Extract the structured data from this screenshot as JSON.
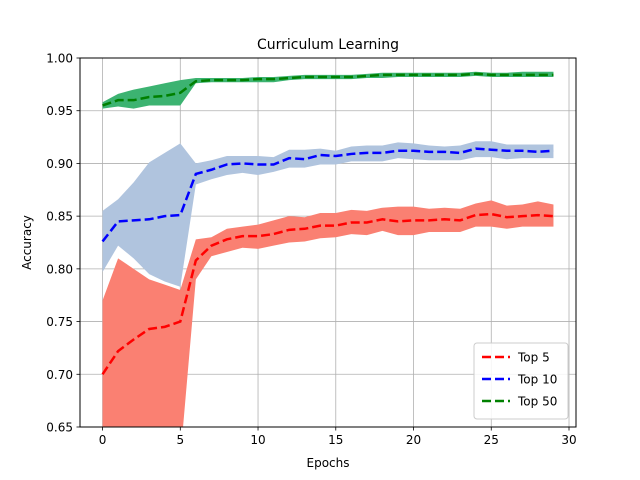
{
  "chart_data": {
    "type": "line",
    "title": "Curriculum Learning",
    "xlabel": "Epochs",
    "ylabel": "Accuracy",
    "xlim": [
      -1.45,
      30.45
    ],
    "ylim": [
      0.65,
      1.0
    ],
    "xticks": [
      0,
      5,
      10,
      15,
      20,
      25,
      30
    ],
    "yticks": [
      0.65,
      0.7,
      0.75,
      0.8,
      0.85,
      0.9,
      0.95,
      1.0
    ],
    "ytick_labels": [
      "0.65",
      "0.70",
      "0.75",
      "0.80",
      "0.85",
      "0.90",
      "0.95",
      "1.00"
    ],
    "grid": true,
    "legend_position": "lower-right",
    "x": [
      0,
      1,
      2,
      3,
      4,
      5,
      6,
      7,
      8,
      9,
      10,
      11,
      12,
      13,
      14,
      15,
      16,
      17,
      18,
      19,
      20,
      21,
      22,
      23,
      24,
      25,
      26,
      27,
      28,
      29
    ],
    "series": [
      {
        "name": "Top 5",
        "color": "#ff0000",
        "band_color": "#fa8072",
        "values": [
          0.7,
          0.722,
          0.733,
          0.743,
          0.745,
          0.75,
          0.808,
          0.822,
          0.828,
          0.831,
          0.831,
          0.833,
          0.837,
          0.838,
          0.841,
          0.841,
          0.844,
          0.844,
          0.847,
          0.845,
          0.846,
          0.846,
          0.847,
          0.846,
          0.851,
          0.852,
          0.849,
          0.85,
          0.851,
          0.85
        ],
        "lower": [
          0.62,
          0.64,
          0.65,
          0.64,
          0.63,
          0.62,
          0.79,
          0.812,
          0.816,
          0.82,
          0.819,
          0.822,
          0.825,
          0.826,
          0.829,
          0.83,
          0.833,
          0.832,
          0.836,
          0.832,
          0.832,
          0.835,
          0.835,
          0.835,
          0.84,
          0.84,
          0.838,
          0.84,
          0.84,
          0.84
        ],
        "upper": [
          0.77,
          0.81,
          0.8,
          0.79,
          0.785,
          0.78,
          0.828,
          0.83,
          0.838,
          0.84,
          0.842,
          0.846,
          0.85,
          0.849,
          0.853,
          0.853,
          0.856,
          0.855,
          0.858,
          0.859,
          0.859,
          0.857,
          0.858,
          0.857,
          0.862,
          0.865,
          0.86,
          0.861,
          0.864,
          0.861
        ]
      },
      {
        "name": "Top 10",
        "color": "#0000ff",
        "band_color": "#b0c4de",
        "values": [
          0.826,
          0.845,
          0.846,
          0.847,
          0.85,
          0.851,
          0.89,
          0.894,
          0.899,
          0.9,
          0.899,
          0.899,
          0.905,
          0.904,
          0.908,
          0.907,
          0.909,
          0.91,
          0.91,
          0.912,
          0.912,
          0.911,
          0.911,
          0.91,
          0.914,
          0.913,
          0.912,
          0.912,
          0.911,
          0.912
        ],
        "lower": [
          0.797,
          0.822,
          0.81,
          0.795,
          0.788,
          0.783,
          0.88,
          0.885,
          0.889,
          0.891,
          0.889,
          0.892,
          0.896,
          0.896,
          0.899,
          0.899,
          0.902,
          0.902,
          0.902,
          0.905,
          0.904,
          0.903,
          0.903,
          0.903,
          0.906,
          0.906,
          0.904,
          0.905,
          0.905,
          0.905
        ],
        "upper": [
          0.855,
          0.866,
          0.882,
          0.901,
          0.91,
          0.919,
          0.9,
          0.903,
          0.907,
          0.907,
          0.907,
          0.906,
          0.913,
          0.913,
          0.914,
          0.912,
          0.916,
          0.917,
          0.917,
          0.92,
          0.919,
          0.917,
          0.916,
          0.917,
          0.921,
          0.921,
          0.918,
          0.918,
          0.918,
          0.918
        ]
      },
      {
        "name": "Top 50",
        "color": "#008000",
        "band_color": "#3cb371",
        "values": [
          0.955,
          0.96,
          0.96,
          0.963,
          0.964,
          0.967,
          0.978,
          0.979,
          0.979,
          0.979,
          0.98,
          0.98,
          0.981,
          0.982,
          0.982,
          0.982,
          0.982,
          0.983,
          0.984,
          0.984,
          0.984,
          0.984,
          0.984,
          0.984,
          0.985,
          0.984,
          0.984,
          0.984,
          0.984,
          0.984
        ],
        "lower": [
          0.952,
          0.954,
          0.952,
          0.955,
          0.955,
          0.955,
          0.976,
          0.977,
          0.977,
          0.977,
          0.977,
          0.977,
          0.979,
          0.98,
          0.98,
          0.98,
          0.98,
          0.981,
          0.981,
          0.982,
          0.982,
          0.982,
          0.982,
          0.982,
          0.983,
          0.982,
          0.982,
          0.982,
          0.982,
          0.982
        ],
        "upper": [
          0.958,
          0.966,
          0.97,
          0.973,
          0.976,
          0.979,
          0.981,
          0.981,
          0.981,
          0.981,
          0.982,
          0.982,
          0.983,
          0.984,
          0.984,
          0.984,
          0.984,
          0.985,
          0.986,
          0.986,
          0.986,
          0.986,
          0.986,
          0.986,
          0.987,
          0.986,
          0.986,
          0.987,
          0.987,
          0.987
        ]
      }
    ]
  }
}
